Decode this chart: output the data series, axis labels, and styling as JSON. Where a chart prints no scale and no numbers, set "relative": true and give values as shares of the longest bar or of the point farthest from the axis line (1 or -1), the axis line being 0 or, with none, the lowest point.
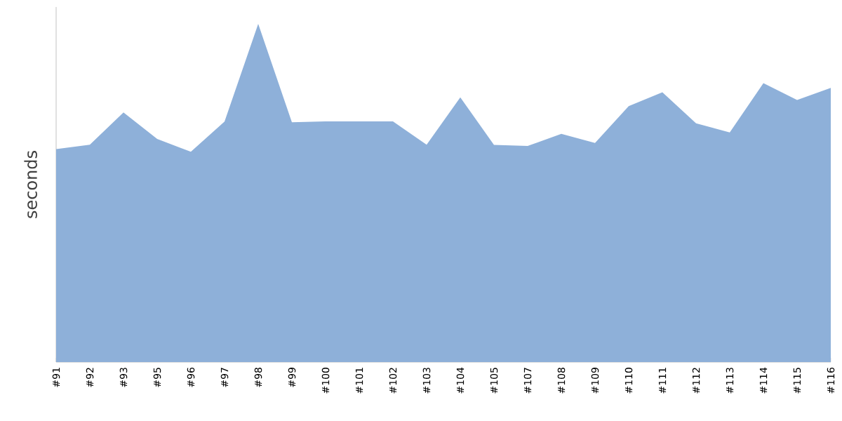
{
  "chart_data": {
    "type": "area",
    "ylabel": "seconds",
    "relative": true,
    "color": "#8eb0d9",
    "categories": [
      "#91",
      "#92",
      "#93",
      "#95",
      "#96",
      "#97",
      "#98",
      "#99",
      "#100",
      "#101",
      "#102",
      "#103",
      "#104",
      "#105",
      "#107",
      "#108",
      "#109",
      "#110",
      "#111",
      "#112",
      "#113",
      "#114",
      "#115",
      "#116"
    ],
    "values": [
      0.63,
      0.643,
      0.738,
      0.66,
      0.622,
      0.711,
      1,
      0.709,
      0.712,
      0.712,
      0.712,
      0.643,
      0.783,
      0.642,
      0.639,
      0.675,
      0.648,
      0.757,
      0.798,
      0.706,
      0.679,
      0.825,
      0.775,
      0.811
    ]
  }
}
